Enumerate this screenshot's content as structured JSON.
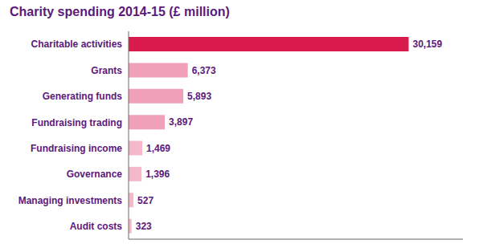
{
  "chart_data": {
    "type": "bar",
    "orientation": "horizontal",
    "title": "Charity spending 2014-15 (£ million)",
    "categories": [
      "Audit costs",
      "Managing investments",
      "Governance",
      "Fundraising income",
      "Fundraising trading",
      "Generating funds",
      "Grants",
      "Charitable activities"
    ],
    "values": [
      323,
      527,
      1396,
      1469,
      3897,
      5893,
      6373,
      30159
    ],
    "value_labels": [
      "323",
      "527",
      "1,396",
      "1,469",
      "3,897",
      "5,893",
      "6,373",
      "30,159"
    ],
    "data_labels": true,
    "colors": [
      "#f5b8c8",
      "#f5b8c8",
      "#f5b8c8",
      "#f5b8c8",
      "#f0a0b8",
      "#f0a0b8",
      "#f0a0b8",
      "#d81b4a"
    ],
    "xlim": [
      0,
      36000
    ],
    "tick_labels": "y",
    "grid": false
  }
}
